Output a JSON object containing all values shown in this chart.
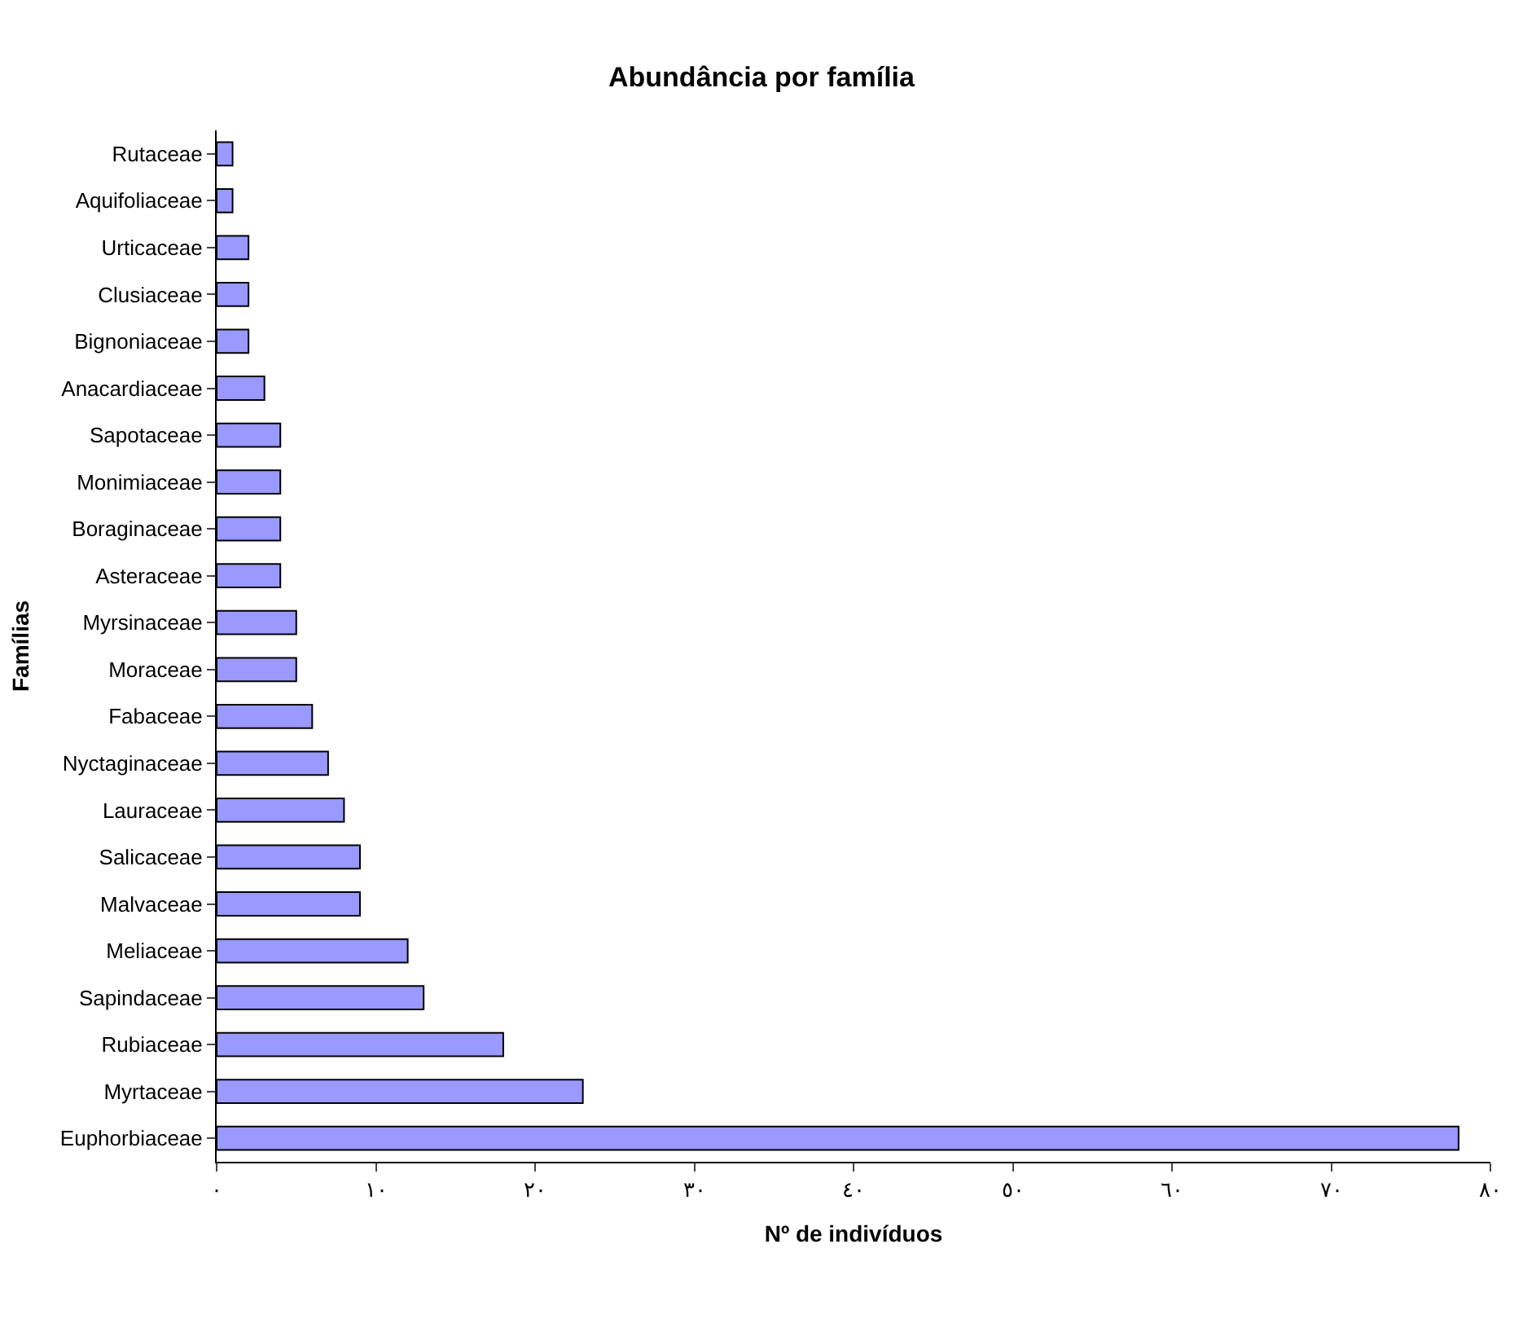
{
  "chart_data": {
    "type": "bar",
    "orientation": "horizontal",
    "title": "Abundância por família",
    "xlabel": "Nº de indivíduos",
    "ylabel": "Famílias",
    "categories": [
      "Rutaceae",
      "Aquifoliaceae",
      "Urticaceae",
      "Clusiaceae",
      "Bignoniaceae",
      "Anacardiaceae",
      "Sapotaceae",
      "Monimiaceae",
      "Boraginaceae",
      "Asteraceae",
      "Myrsinaceae",
      "Moraceae",
      "Fabaceae",
      "Nyctaginaceae",
      "Lauraceae",
      "Salicaceae",
      "Malvaceae",
      "Meliaceae",
      "Sapindaceae",
      "Rubiaceae",
      "Myrtaceae",
      "Euphorbiaceae"
    ],
    "values": [
      1,
      1,
      2,
      2,
      2,
      3,
      4,
      4,
      4,
      4,
      5,
      5,
      6,
      7,
      8,
      9,
      9,
      12,
      13,
      18,
      23,
      78
    ],
    "color": "#9999ff",
    "xlim": [
      0,
      80
    ],
    "xticks": [
      {
        "value": 0,
        "label": "٠"
      },
      {
        "value": 10,
        "label": "١٠"
      },
      {
        "value": 20,
        "label": "٢٠"
      },
      {
        "value": 30,
        "label": "٣٠"
      },
      {
        "value": 40,
        "label": "٤٠"
      },
      {
        "value": 50,
        "label": "٥٠"
      },
      {
        "value": 60,
        "label": "٦٠"
      },
      {
        "value": 70,
        "label": "٧٠"
      },
      {
        "value": 80,
        "label": "٨٠"
      }
    ],
    "legend": false
  }
}
